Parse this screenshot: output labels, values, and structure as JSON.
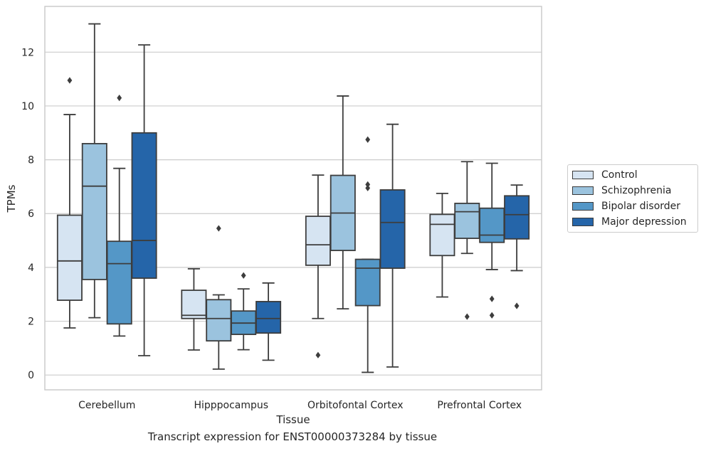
{
  "caption": "Transcript expression for ENST00000373284 by tissue",
  "chart_data": {
    "type": "boxplot",
    "xlabel": "Tissue",
    "ylabel": "TPMs",
    "ylim": [
      -0.55,
      13.7
    ],
    "yticks": [
      0,
      2,
      4,
      6,
      8,
      10,
      12
    ],
    "grid": "horizontal",
    "legend_position": "right",
    "categories": [
      "Cerebellum",
      "Hipppocampus",
      "Orbitofontal Cortex",
      "Prefrontal Cortex"
    ],
    "series": [
      {
        "name": "Control",
        "color": "#d6e4f2",
        "boxes": [
          {
            "whislo": 1.75,
            "q1": 2.78,
            "med": 4.24,
            "q3": 5.94,
            "whishi": 9.68,
            "fliers": [
              10.95
            ]
          },
          {
            "whislo": 0.93,
            "q1": 2.1,
            "med": 2.22,
            "q3": 3.15,
            "whishi": 3.95,
            "fliers": []
          },
          {
            "whislo": 2.1,
            "q1": 4.08,
            "med": 4.84,
            "q3": 5.9,
            "whishi": 7.43,
            "fliers": [
              0.74
            ]
          },
          {
            "whislo": 2.9,
            "q1": 4.44,
            "med": 5.6,
            "q3": 5.97,
            "whishi": 6.75,
            "fliers": []
          }
        ]
      },
      {
        "name": "Schizophrenia",
        "color": "#9bc3de",
        "boxes": [
          {
            "whislo": 2.13,
            "q1": 3.55,
            "med": 7.02,
            "q3": 8.6,
            "whishi": 13.05,
            "fliers": []
          },
          {
            "whislo": 0.22,
            "q1": 1.27,
            "med": 2.1,
            "q3": 2.8,
            "whishi": 2.98,
            "fliers": [
              5.45
            ]
          },
          {
            "whislo": 2.46,
            "q1": 4.63,
            "med": 6.02,
            "q3": 7.42,
            "whishi": 10.37,
            "fliers": []
          },
          {
            "whislo": 4.52,
            "q1": 5.08,
            "med": 6.07,
            "q3": 6.38,
            "whishi": 7.93,
            "fliers": [
              2.17
            ]
          }
        ]
      },
      {
        "name": "Bipolar disorder",
        "color": "#5497c7",
        "boxes": [
          {
            "whislo": 1.45,
            "q1": 1.9,
            "med": 4.14,
            "q3": 4.97,
            "whishi": 7.68,
            "fliers": [
              10.3
            ]
          },
          {
            "whislo": 0.94,
            "q1": 1.51,
            "med": 1.93,
            "q3": 2.38,
            "whishi": 3.2,
            "fliers": [
              3.7
            ]
          },
          {
            "whislo": 0.1,
            "q1": 2.58,
            "med": 3.97,
            "q3": 4.3,
            "whishi": 4.3,
            "fliers": [
              8.75,
              7.08,
              6.95
            ]
          },
          {
            "whislo": 3.92,
            "q1": 4.93,
            "med": 5.2,
            "q3": 6.2,
            "whishi": 7.87,
            "fliers": [
              2.83,
              2.22
            ]
          }
        ]
      },
      {
        "name": "Major depression",
        "color": "#2565a9",
        "boxes": [
          {
            "whislo": 0.72,
            "q1": 3.6,
            "med": 5.0,
            "q3": 9.0,
            "whishi": 12.27,
            "fliers": []
          },
          {
            "whislo": 0.55,
            "q1": 1.56,
            "med": 2.1,
            "q3": 2.73,
            "whishi": 3.42,
            "fliers": []
          },
          {
            "whislo": 0.3,
            "q1": 3.97,
            "med": 5.67,
            "q3": 6.88,
            "whishi": 9.32,
            "fliers": []
          },
          {
            "whislo": 3.88,
            "q1": 5.06,
            "med": 5.96,
            "q3": 6.66,
            "whishi": 7.06,
            "fliers": [
              2.57
            ]
          }
        ]
      }
    ]
  }
}
